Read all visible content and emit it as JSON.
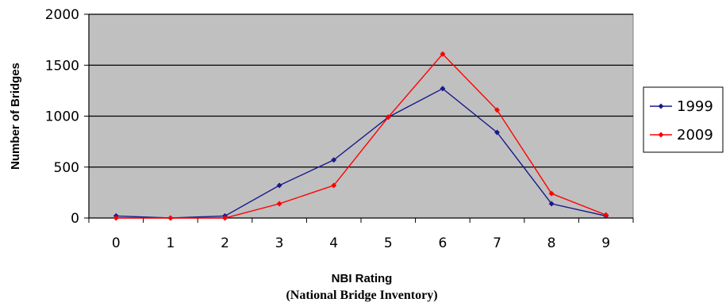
{
  "chart_data": {
    "type": "line",
    "x": [
      0,
      1,
      2,
      3,
      4,
      5,
      6,
      7,
      8,
      9
    ],
    "series": [
      {
        "name": "1999",
        "color": "#1a1a8c",
        "values": [
          20,
          0,
          20,
          320,
          570,
          990,
          1270,
          840,
          140,
          20
        ]
      },
      {
        "name": "2009",
        "color": "#ff0000",
        "values": [
          0,
          0,
          0,
          140,
          320,
          990,
          1610,
          1060,
          240,
          30
        ]
      }
    ],
    "xlabel": "NBI Rating",
    "xlabel_sub": "(National Bridge Inventory)",
    "ylabel": "Number of Bridges",
    "ylim": [
      0,
      2000
    ],
    "yticks": [
      "0",
      "500",
      "1000",
      "1500",
      "2000"
    ],
    "xticks": [
      "0",
      "1",
      "2",
      "3",
      "4",
      "5",
      "6",
      "7",
      "8",
      "9"
    ],
    "plot_background": "#c0c0c0",
    "grid": true,
    "legend_position": "right"
  }
}
